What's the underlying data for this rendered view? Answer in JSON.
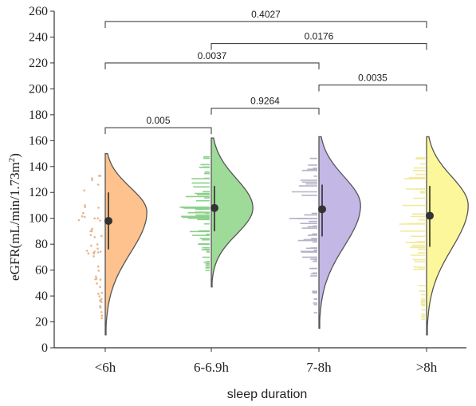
{
  "chart_data": {
    "type": "violin",
    "xlabel": "sleep duration",
    "ylabel_main": "eGFR(mL/min/1.73m",
    "ylabel_sup": "2",
    "ylabel_close": ")",
    "ylim": [
      0,
      260
    ],
    "yticks": [
      0,
      20,
      40,
      60,
      80,
      100,
      120,
      140,
      160,
      180,
      200,
      220,
      240,
      260
    ],
    "categories": [
      "<6h",
      "6-6.9h",
      "7-8h",
      ">8h"
    ],
    "colors": [
      "#fdc28d",
      "#9fdb98",
      "#c3b7e6",
      "#fcf79a"
    ],
    "point_colors": [
      "#e6b48a",
      "#8bd08a",
      "#b4b4c8",
      "#f2ea9a"
    ],
    "series": [
      {
        "name": "<6h",
        "median": 98,
        "q1": 76,
        "q3": 120,
        "min": 10,
        "max": 150,
        "peak": 105
      },
      {
        "name": "6-6.9h",
        "median": 108,
        "q1": 90,
        "q3": 125,
        "min": 47,
        "max": 162,
        "peak": 108
      },
      {
        "name": "7-8h",
        "median": 107,
        "q1": 86,
        "q3": 126,
        "min": 15,
        "max": 163,
        "peak": 110
      },
      {
        "name": ">8h",
        "median": 102,
        "q1": 78,
        "q3": 125,
        "min": 10,
        "max": 163,
        "peak": 110
      }
    ],
    "comparisons": [
      {
        "from": 0,
        "to": 1,
        "p": "0.005",
        "y": 170
      },
      {
        "from": 1,
        "to": 2,
        "p": "0.9264",
        "y": 185
      },
      {
        "from": 2,
        "to": 3,
        "p": "0.0035",
        "y": 203
      },
      {
        "from": 0,
        "to": 2,
        "p": "0.0037",
        "y": 220
      },
      {
        "from": 1,
        "to": 3,
        "p": "0.0176",
        "y": 235
      },
      {
        "from": 0,
        "to": 3,
        "p": "0.4027",
        "y": 252
      }
    ]
  }
}
